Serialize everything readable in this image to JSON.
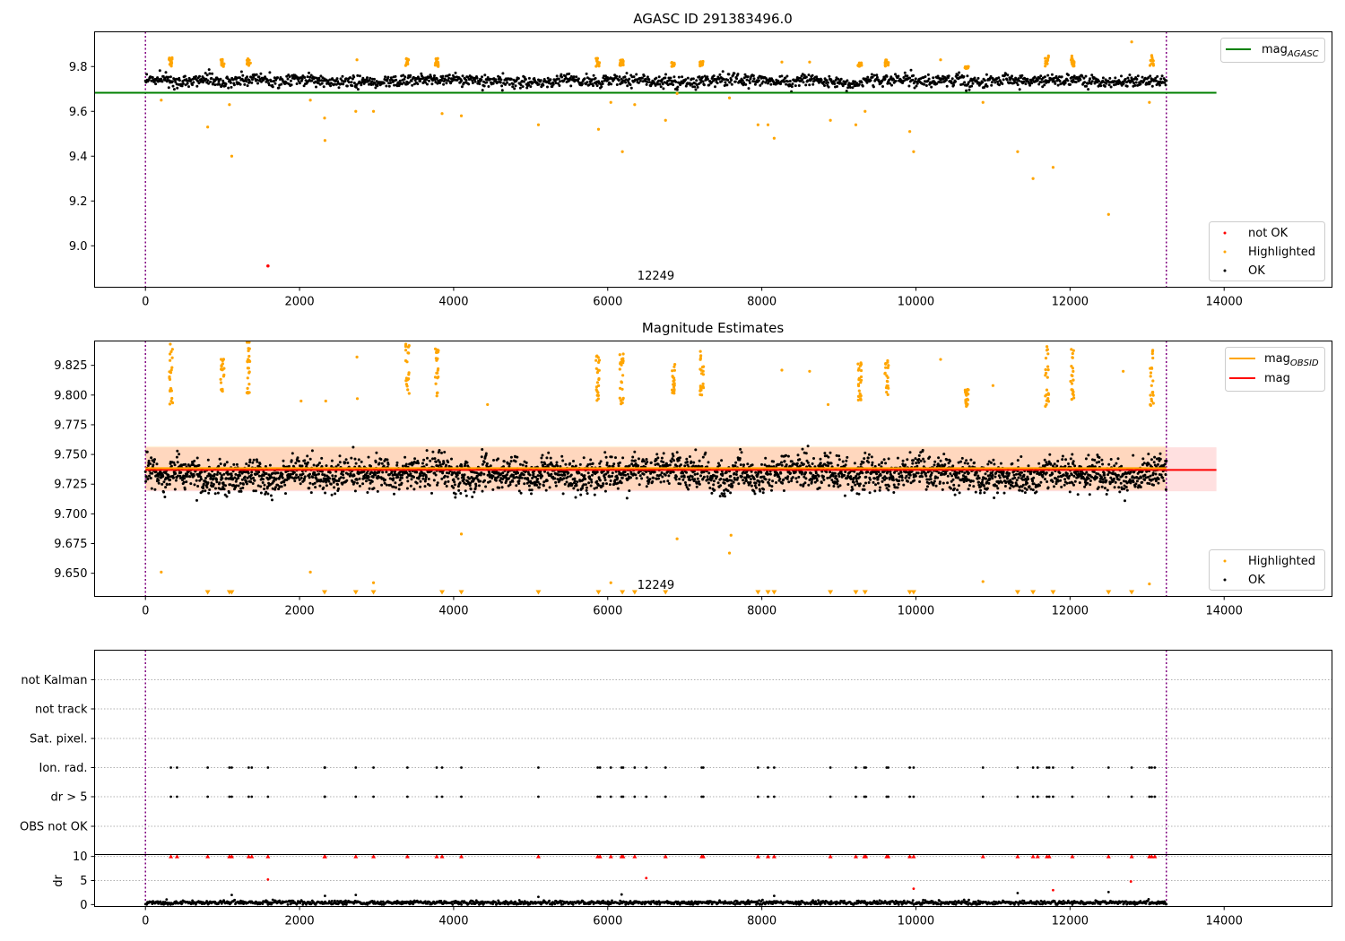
{
  "figure": {
    "panel1_title": "AGASC ID 291383496.0",
    "panel2_title": "Magnitude Estimates",
    "obsid_label": "12249"
  },
  "legends": {
    "panel1": {
      "line": {
        "text": "mag",
        "sub": "AGASC",
        "color": "#008000"
      },
      "points": [
        {
          "label": "not OK",
          "color": "#ff0000"
        },
        {
          "label": "Highlighted",
          "color": "#ffa500"
        },
        {
          "label": "OK",
          "color": "#000000"
        }
      ]
    },
    "panel2": {
      "lines": [
        {
          "text": "mag",
          "sub": "OBSID",
          "color": "#ffa500"
        },
        {
          "text": "mag",
          "sub": "",
          "color": "#ff0000"
        }
      ],
      "points": [
        {
          "label": "Highlighted",
          "color": "#ffa500"
        },
        {
          "label": "OK",
          "color": "#000000"
        }
      ]
    }
  },
  "chart_data": [
    {
      "type": "scatter",
      "title": "AGASC ID 291383496.0",
      "xlim": [
        -660,
        15400
      ],
      "ylim": [
        8.815,
        9.955
      ],
      "xticks": [
        0,
        2000,
        4000,
        6000,
        8000,
        10000,
        12000,
        14000
      ],
      "yticks": [
        9.0,
        9.2,
        9.4,
        9.6,
        9.8
      ],
      "mag_agasc": 9.683,
      "obs_boundaries": [
        0,
        13250
      ],
      "obsid_annotation": {
        "text": "12249",
        "x": 6625
      },
      "ok_band": {
        "x_range": [
          0,
          13250
        ],
        "center": 9.735,
        "spread": 0.03
      },
      "not_ok_points": [
        [
          1590,
          8.91
        ]
      ],
      "highlighted_points": [
        [
          205,
          9.65
        ],
        [
          808,
          9.53
        ],
        [
          1090,
          9.63
        ],
        [
          1120,
          9.4
        ],
        [
          2140,
          9.65
        ],
        [
          2325,
          9.57
        ],
        [
          2330,
          9.47
        ],
        [
          2730,
          9.6
        ],
        [
          2745,
          9.83
        ],
        [
          2960,
          9.6
        ],
        [
          3850,
          9.59
        ],
        [
          4100,
          9.58
        ],
        [
          5100,
          9.54
        ],
        [
          5880,
          9.52
        ],
        [
          6040,
          9.64
        ],
        [
          6190,
          9.42
        ],
        [
          6350,
          9.63
        ],
        [
          6750,
          9.56
        ],
        [
          6900,
          9.68
        ],
        [
          7580,
          9.66
        ],
        [
          7950,
          9.54
        ],
        [
          8080,
          9.54
        ],
        [
          8160,
          9.48
        ],
        [
          8260,
          9.82
        ],
        [
          8620,
          9.82
        ],
        [
          8890,
          9.56
        ],
        [
          9220,
          9.54
        ],
        [
          9340,
          9.6
        ],
        [
          9920,
          9.51
        ],
        [
          9970,
          9.42
        ],
        [
          10320,
          9.83
        ],
        [
          10870,
          9.64
        ],
        [
          11320,
          9.42
        ],
        [
          11520,
          9.3
        ],
        [
          11780,
          9.35
        ],
        [
          12500,
          9.14
        ],
        [
          12800,
          9.91
        ],
        [
          13030,
          9.64
        ]
      ],
      "highlighted_clusters": [
        {
          "x": 330,
          "y_range": [
            9.8,
            9.84
          ]
        },
        {
          "x": 1000,
          "y_range": [
            9.8,
            9.84
          ]
        },
        {
          "x": 1340,
          "y_range": [
            9.8,
            9.84
          ]
        },
        {
          "x": 3400,
          "y_range": [
            9.8,
            9.84
          ]
        },
        {
          "x": 3780,
          "y_range": [
            9.8,
            9.84
          ]
        },
        {
          "x": 5870,
          "y_range": [
            9.8,
            9.84
          ]
        },
        {
          "x": 6180,
          "y_range": [
            9.8,
            9.83
          ]
        },
        {
          "x": 6850,
          "y_range": [
            9.8,
            9.82
          ]
        },
        {
          "x": 7220,
          "y_range": [
            9.8,
            9.83
          ]
        },
        {
          "x": 9270,
          "y_range": [
            9.8,
            9.82
          ]
        },
        {
          "x": 9620,
          "y_range": [
            9.8,
            9.83
          ]
        },
        {
          "x": 10660,
          "y_range": [
            9.79,
            9.8
          ]
        },
        {
          "x": 11700,
          "y_range": [
            9.8,
            9.85
          ]
        },
        {
          "x": 12030,
          "y_range": [
            9.8,
            9.85
          ]
        },
        {
          "x": 13060,
          "y_range": [
            9.8,
            9.85
          ]
        }
      ],
      "legend": [
        "mag_AGASC",
        "not OK",
        "Highlighted",
        "OK"
      ],
      "legend_placement": [
        "upper right",
        "lower right"
      ]
    },
    {
      "type": "scatter",
      "title": "Magnitude Estimates",
      "xlim": [
        -660,
        15400
      ],
      "ylim": [
        9.6305,
        9.8455
      ],
      "xticks": [
        0,
        2000,
        4000,
        6000,
        8000,
        10000,
        12000,
        14000
      ],
      "yticks": [
        9.65,
        9.675,
        9.7,
        9.725,
        9.75,
        9.775,
        9.8,
        9.825
      ],
      "mag": 9.737,
      "mag_band": [
        9.719,
        9.756
      ],
      "mag_obsid": 9.7385,
      "mag_obsid_band": [
        9.72,
        9.757
      ],
      "obs_boundaries": [
        0,
        13250
      ],
      "obsid_annotation": {
        "text": "12249",
        "x": 6625
      },
      "ok_band": {
        "x_range": [
          0,
          13250
        ],
        "center": 9.733,
        "spread": 0.015
      },
      "highlighted_points": [
        [
          205,
          9.651
        ],
        [
          2140,
          9.651
        ],
        [
          2960,
          9.642
        ],
        [
          4100,
          9.683
        ],
        [
          6900,
          9.679
        ],
        [
          7580,
          9.667
        ],
        [
          7600,
          9.682
        ],
        [
          6040,
          9.642
        ],
        [
          10870,
          9.643
        ],
        [
          13030,
          9.641
        ],
        [
          2745,
          9.832
        ],
        [
          8260,
          9.821
        ],
        [
          8620,
          9.82
        ],
        [
          10320,
          9.83
        ],
        [
          12690,
          9.82
        ],
        [
          11000,
          9.808
        ],
        [
          8860,
          9.792
        ],
        [
          4440,
          9.792
        ],
        [
          2340,
          9.795
        ],
        [
          2020,
          9.795
        ],
        [
          2750,
          9.797
        ]
      ],
      "highlighted_clusters": [
        {
          "x": 330,
          "y_range": [
            9.79,
            9.845
          ]
        },
        {
          "x": 1000,
          "y_range": [
            9.795,
            9.832
          ]
        },
        {
          "x": 1340,
          "y_range": [
            9.8,
            9.845
          ]
        },
        {
          "x": 3400,
          "y_range": [
            9.8,
            9.845
          ]
        },
        {
          "x": 3780,
          "y_range": [
            9.795,
            9.84
          ]
        },
        {
          "x": 5870,
          "y_range": [
            9.795,
            9.835
          ]
        },
        {
          "x": 6180,
          "y_range": [
            9.79,
            9.835
          ]
        },
        {
          "x": 6850,
          "y_range": [
            9.8,
            9.826
          ]
        },
        {
          "x": 7220,
          "y_range": [
            9.8,
            9.837
          ]
        },
        {
          "x": 9270,
          "y_range": [
            9.795,
            9.83
          ]
        },
        {
          "x": 9620,
          "y_range": [
            9.795,
            9.837
          ]
        },
        {
          "x": 10660,
          "y_range": [
            9.79,
            9.805
          ]
        },
        {
          "x": 11700,
          "y_range": [
            9.79,
            9.845
          ]
        },
        {
          "x": 12030,
          "y_range": [
            9.795,
            9.845
          ]
        },
        {
          "x": 13060,
          "y_range": [
            9.79,
            9.845
          ]
        }
      ],
      "below_range_markers_x": [
        808,
        1090,
        1120,
        2325,
        2730,
        2960,
        3850,
        4100,
        5100,
        5880,
        6190,
        6350,
        6750,
        7950,
        8080,
        8160,
        8890,
        9220,
        9340,
        9920,
        9970,
        11320,
        11520,
        11780,
        12500,
        12800
      ],
      "legend": [
        "mag_OBSID",
        "mag",
        "Highlighted",
        "OK"
      ],
      "legend_placement": [
        "upper right",
        "lower right"
      ]
    },
    {
      "type": "scatter",
      "title": "",
      "xlim": [
        -660,
        15400
      ],
      "xticks": [
        0,
        2000,
        4000,
        6000,
        8000,
        10000,
        12000,
        14000
      ],
      "flag_rows": [
        "not Kalman",
        "not track",
        "Sat. pixel.",
        "Ion. rad.",
        "dr > 5",
        "OBS not OK"
      ],
      "flag_events_x": [
        330,
        410,
        808,
        1090,
        1120,
        1340,
        1380,
        1590,
        2325,
        2330,
        2730,
        2960,
        3400,
        3780,
        3850,
        4100,
        5100,
        5870,
        5900,
        6040,
        6180,
        6200,
        6350,
        6500,
        6750,
        7220,
        7240,
        7950,
        8080,
        8160,
        8890,
        9220,
        9330,
        9350,
        9620,
        9640,
        9920,
        9970,
        10870,
        11320,
        11520,
        11580,
        11700,
        11730,
        11780,
        12030,
        12500,
        12800,
        13030,
        13060,
        13100
      ],
      "obs_boundaries": [
        0,
        13250
      ]
    },
    {
      "type": "scatter",
      "title": "",
      "ylabel": "dr",
      "xlim": [
        -660,
        15400
      ],
      "ylim": [
        -0.4,
        10.4
      ],
      "xticks": [
        0,
        2000,
        4000,
        6000,
        8000,
        10000,
        12000,
        14000
      ],
      "yticks": [
        0,
        5,
        10
      ],
      "ok_band": {
        "x_range": [
          0,
          13250
        ],
        "center": 0.4,
        "spread": 0.35
      },
      "capped_markers_x": [
        330,
        410,
        808,
        1090,
        1120,
        1340,
        1380,
        1590,
        2325,
        2330,
        2730,
        2960,
        3400,
        3780,
        3850,
        4100,
        5100,
        5870,
        5900,
        6040,
        6180,
        6200,
        6350,
        6750,
        7220,
        7240,
        7950,
        8080,
        8160,
        8890,
        9220,
        9330,
        9350,
        9620,
        9640,
        9920,
        9970,
        10870,
        11320,
        11520,
        11580,
        11700,
        11730,
        12030,
        12500,
        12800,
        13030,
        13060,
        13100
      ],
      "red_points": [
        [
          1590,
          5.2
        ],
        [
          6500,
          5.5
        ],
        [
          9970,
          3.3
        ],
        [
          11780,
          3.0
        ],
        [
          12790,
          4.8
        ]
      ],
      "black_outliers": [
        [
          1120,
          2.0
        ],
        [
          2330,
          1.8
        ],
        [
          2730,
          2.0
        ],
        [
          5100,
          1.6
        ],
        [
          6180,
          2.1
        ],
        [
          8160,
          1.8
        ],
        [
          11320,
          2.4
        ],
        [
          12500,
          2.6
        ]
      ],
      "obs_boundaries": [
        0,
        13250
      ]
    }
  ]
}
